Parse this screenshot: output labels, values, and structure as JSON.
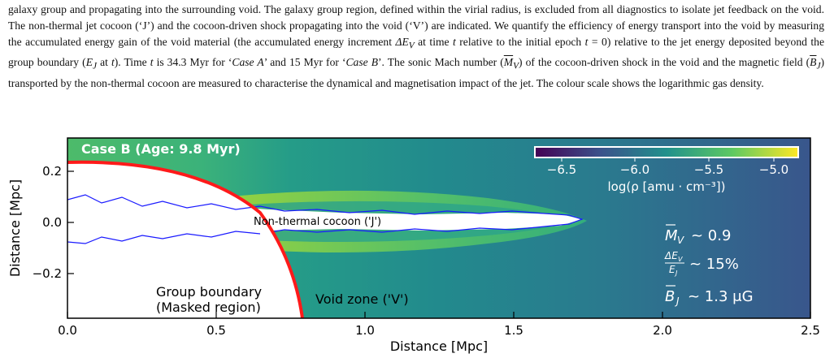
{
  "caption": {
    "seg1": "galaxy group and propagating into the surrounding void. The galaxy group region, defined within the virial radius, is excluded from all diagnostics to isolate jet feedback on the void. The non-thermal jet cocoon (‘J’) and the cocoon-driven shock propagating into the void (‘V’) are indicated. We quantify the efficiency of energy transport into the void by measuring the accumulated energy gain of the void material (the accumulated energy increment ",
    "sym_dEV": "ΔE",
    "sub_V": "V",
    "seg2": " at time ",
    "sym_t1": "t",
    "seg3": " relative to the initial epoch ",
    "sym_t2": "t",
    "seg4": " = 0) relative to the jet energy deposited beyond the group boundary (",
    "sym_EJ": "E",
    "sub_J": "J",
    "seg5": " at ",
    "sym_t3": "t",
    "seg6": "). Time ",
    "sym_t4": "t",
    "seg7": " is 34.3 Myr for ‘",
    "caseA": "Case A",
    "seg8": "’ and 15 Myr for ‘",
    "caseB": "Case B",
    "seg9": "’. The sonic Mach number (",
    "sym_MV": "M",
    "sub_V2": "V",
    "seg10": ") of the cocoon-driven shock in the void and the magnetic field (",
    "sym_BJ": "B",
    "sub_J2": "J",
    "seg11": ") transported by the non-thermal cocoon are measured to characterise the dynamical and magnetisation impact of the jet. The colour scale shows the logarithmic gas density."
  },
  "figure": {
    "panel_title": "Case B (Age: 9.8 Myr)",
    "xlabel": "Distance [Mpc]",
    "ylabel": "Distance [Mpc]",
    "xticks": [
      "0.0",
      "0.5",
      "1.0",
      "1.5",
      "2.0",
      "2.5"
    ],
    "yticks": [
      "0.2",
      "0.0",
      "−0.2"
    ],
    "colorbar": {
      "ticks": [
        "−6.5",
        "−6.0",
        "−5.5",
        "−5.0"
      ],
      "label": "log(ρ [amu · cm⁻³])",
      "colors": [
        "#440154",
        "#3b528b",
        "#21918c",
        "#5ec962",
        "#fde725"
      ]
    },
    "annotations": {
      "cocoon": "Non-thermal cocoon ('J')",
      "group_line1": "Group boundary",
      "group_line2": "(Masked region)",
      "void": "Void zone ('V')"
    },
    "stats": {
      "mach_sym": "M",
      "mach_sub": "V",
      "mach_value": "~ 0.9",
      "frac_num_sym": "ΔE",
      "frac_num_sub": "V",
      "frac_den_sym": "E",
      "frac_den_sub": "J",
      "frac_value": "~ 15%",
      "b_sym": "B",
      "b_sub": "J",
      "b_value": "~ 1.3 μG"
    },
    "colors": {
      "boundary": "#ff1a1a",
      "contour": "#1a1aff",
      "mask": "#ffffff"
    }
  }
}
